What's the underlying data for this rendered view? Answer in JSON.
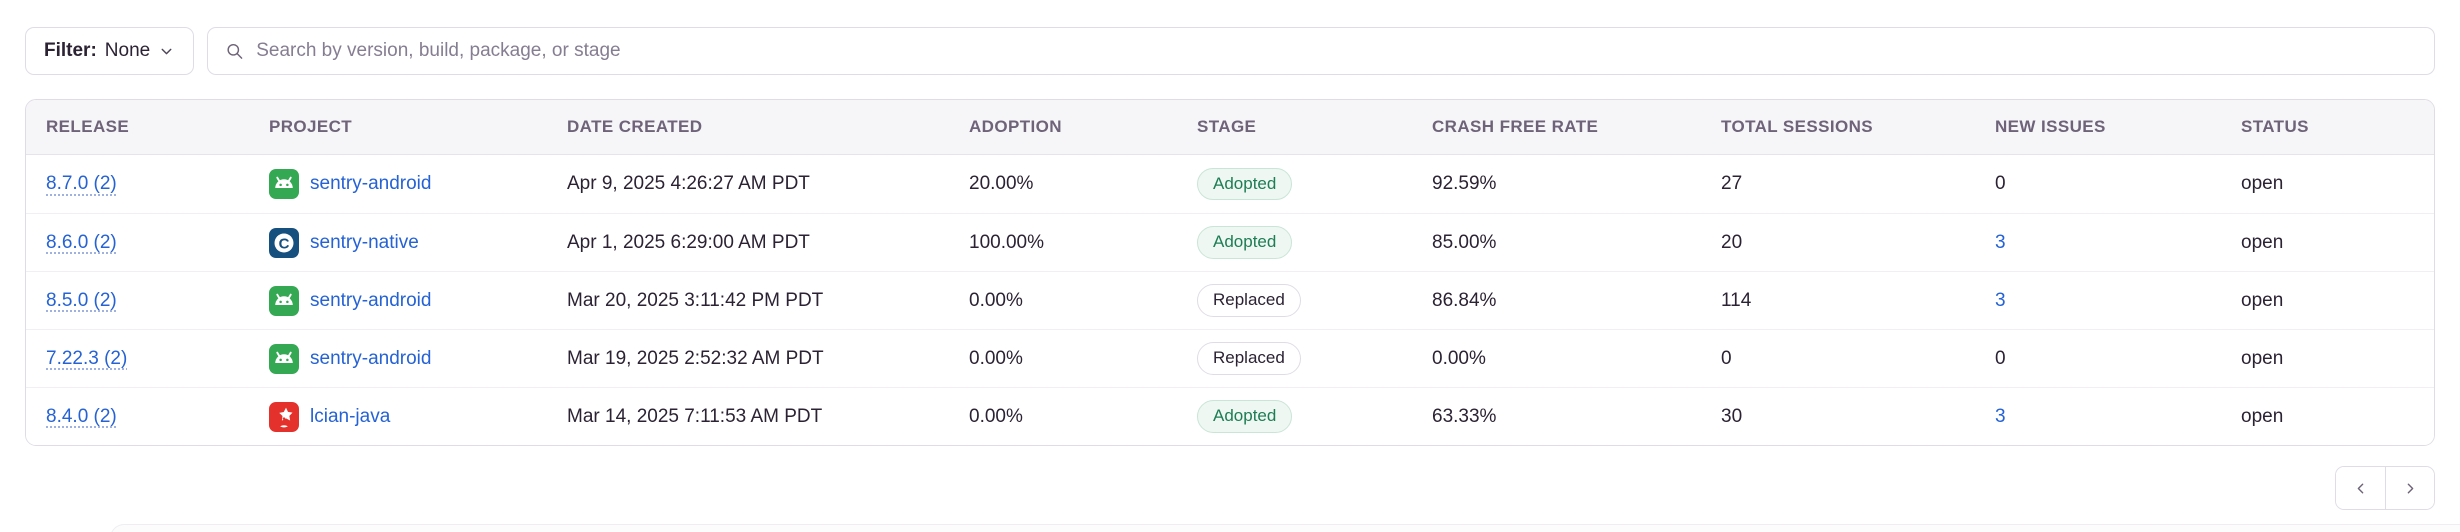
{
  "toolbar": {
    "filter_label": "Filter:",
    "filter_value": "None",
    "filter_dropdown_icon": "chevron-down-icon",
    "search_icon": "search-icon",
    "search_placeholder": "Search by version, build, package, or stage",
    "search_value": ""
  },
  "table": {
    "columns": [
      "RELEASE",
      "PROJECT",
      "DATE CREATED",
      "ADOPTION",
      "STAGE",
      "CRASH FREE RATE",
      "TOTAL SESSIONS",
      "NEW ISSUES",
      "STATUS"
    ],
    "rows": [
      {
        "release": "8.7.0 (2)",
        "project": "sentry-android",
        "platform_icon": "android-icon",
        "date_created": "Apr 9, 2025 4:26:27 AM PDT",
        "adoption": "20.00%",
        "stage": "Adopted",
        "crash_free_rate": "92.59%",
        "total_sessions": "27",
        "new_issues": "0",
        "new_issues_is_link": false,
        "status": "open"
      },
      {
        "release": "8.6.0 (2)",
        "project": "sentry-native",
        "platform_icon": "c-icon",
        "date_created": "Apr 1, 2025 6:29:00 AM PDT",
        "adoption": "100.00%",
        "stage": "Adopted",
        "crash_free_rate": "85.00%",
        "total_sessions": "20",
        "new_issues": "3",
        "new_issues_is_link": true,
        "status": "open"
      },
      {
        "release": "8.5.0 (2)",
        "project": "sentry-android",
        "platform_icon": "android-icon",
        "date_created": "Mar 20, 2025 3:11:42 PM PDT",
        "adoption": "0.00%",
        "stage": "Replaced",
        "crash_free_rate": "86.84%",
        "total_sessions": "114",
        "new_issues": "3",
        "new_issues_is_link": true,
        "status": "open"
      },
      {
        "release": "7.22.3 (2)",
        "project": "sentry-android",
        "platform_icon": "android-icon",
        "date_created": "Mar 19, 2025 2:52:32 AM PDT",
        "adoption": "0.00%",
        "stage": "Replaced",
        "crash_free_rate": "0.00%",
        "total_sessions": "0",
        "new_issues": "0",
        "new_issues_is_link": false,
        "status": "open"
      },
      {
        "release": "8.4.0 (2)",
        "project": "lcian-java",
        "platform_icon": "java-icon",
        "date_created": "Mar 14, 2025 7:11:53 AM PDT",
        "adoption": "0.00%",
        "stage": "Adopted",
        "crash_free_rate": "63.33%",
        "total_sessions": "30",
        "new_issues": "3",
        "new_issues_is_link": true,
        "status": "open"
      }
    ]
  },
  "pagination": {
    "previous_icon": "chevron-left-icon",
    "next_icon": "chevron-right-icon"
  },
  "colors": {
    "link": "#2562d4",
    "text": "#2b2233",
    "muted_header": "#6e6379",
    "border": "#e0dce5",
    "row_divider": "#f1eff4",
    "header_bg": "#f6f5f8",
    "page_bg": "#ffffff",
    "android_green": "#34a853",
    "c_navy": "#16507e",
    "java_red": "#e4312b",
    "adopted_text": "#1d7d54",
    "adopted_bg": "#eef7f2",
    "adopted_border": "#c9e5d7",
    "replaced_text": "#2b2233",
    "replaced_bg": "#ffffff",
    "replaced_border": "#e0dce5"
  }
}
